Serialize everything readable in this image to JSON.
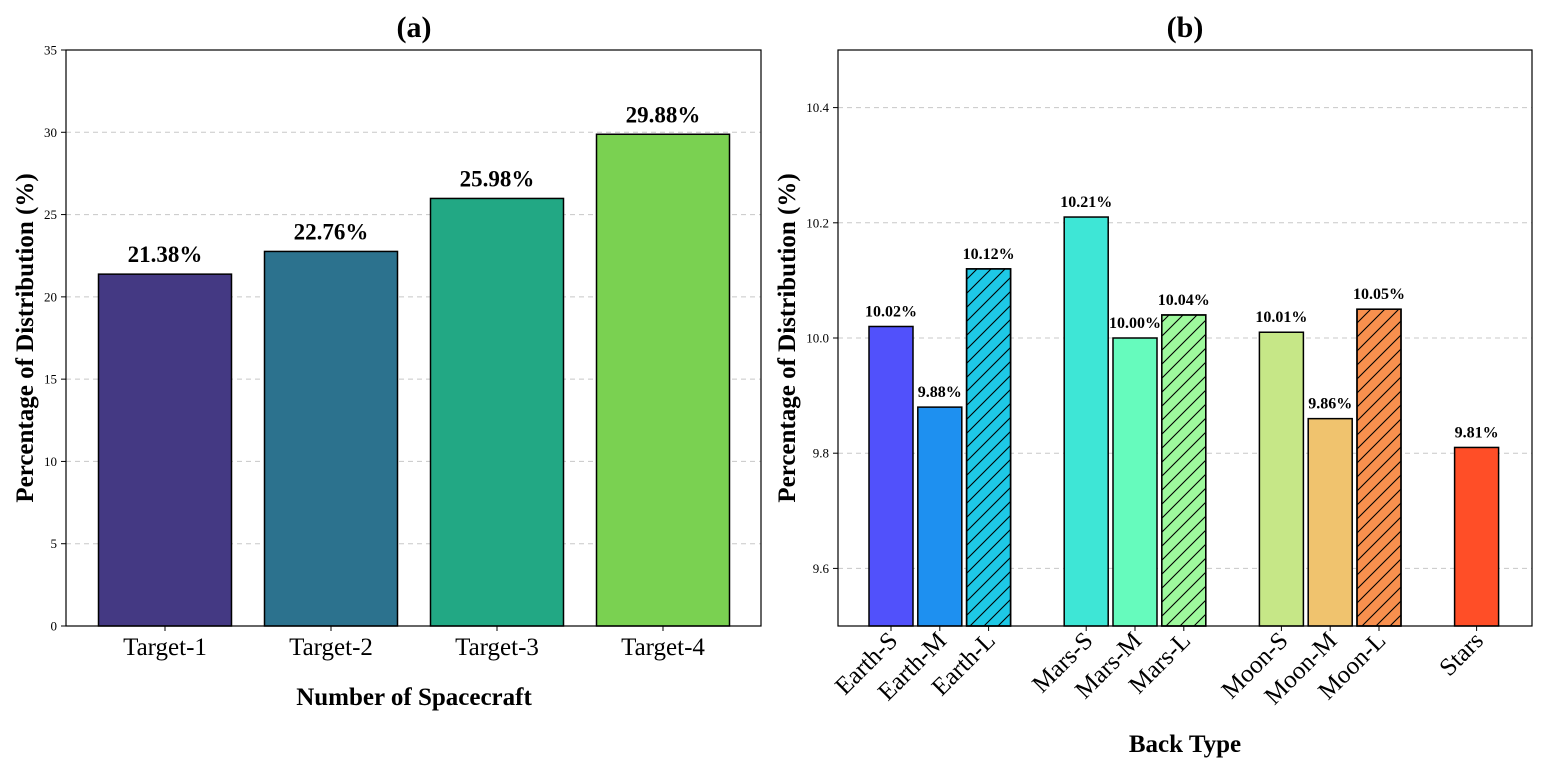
{
  "chart_data": [
    {
      "type": "bar",
      "title": "(a)",
      "xlabel": "Number of Spacecraft",
      "ylabel": "Percentage of Distribution (%)",
      "categories": [
        "Target-1",
        "Target-2",
        "Target-3",
        "Target-4"
      ],
      "values": [
        21.38,
        22.76,
        25.98,
        29.88
      ],
      "value_labels": [
        "21.38%",
        "22.76%",
        "25.98%",
        "29.88%"
      ],
      "colors": [
        "#443983",
        "#2c728e",
        "#22a884",
        "#7ad151"
      ],
      "ylim": [
        0,
        35
      ],
      "yticks": [
        0,
        5,
        10,
        15,
        20,
        25,
        30,
        35
      ],
      "grid": "y-dashed"
    },
    {
      "type": "bar",
      "title": "(b)",
      "xlabel": "Back Type",
      "ylabel": "Percentage of Distribution (%)",
      "categories": [
        "Earth-S",
        "Earth-M",
        "Earth-L",
        "Mars-S",
        "Mars-M",
        "Mars-L",
        "Moon-S",
        "Moon-M",
        "Moon-L",
        "Stars"
      ],
      "positions": [
        0,
        1,
        2,
        4,
        5,
        6,
        8,
        9,
        10,
        12
      ],
      "values": [
        10.02,
        9.88,
        10.12,
        10.21,
        10.0,
        10.04,
        10.01,
        9.86,
        10.05,
        9.81
      ],
      "value_labels": [
        "10.02%",
        "9.88%",
        "10.12%",
        "10.21%",
        "10.00%",
        "10.04%",
        "10.01%",
        "9.86%",
        "10.05%",
        "9.81%"
      ],
      "colors": [
        "#5151fb",
        "#1e90f0",
        "#1ec8e6",
        "#3ee6d6",
        "#66fbbd",
        "#9ef99d",
        "#c6e787",
        "#f0c36e",
        "#f8904e",
        "#ff4e27"
      ],
      "hatched": [
        false,
        false,
        true,
        false,
        false,
        true,
        false,
        false,
        true,
        false
      ],
      "ylim": [
        9.5,
        10.5
      ],
      "yticks": [
        9.6,
        9.8,
        10.0,
        10.2,
        10.4
      ],
      "grid": "y-dashed"
    }
  ]
}
